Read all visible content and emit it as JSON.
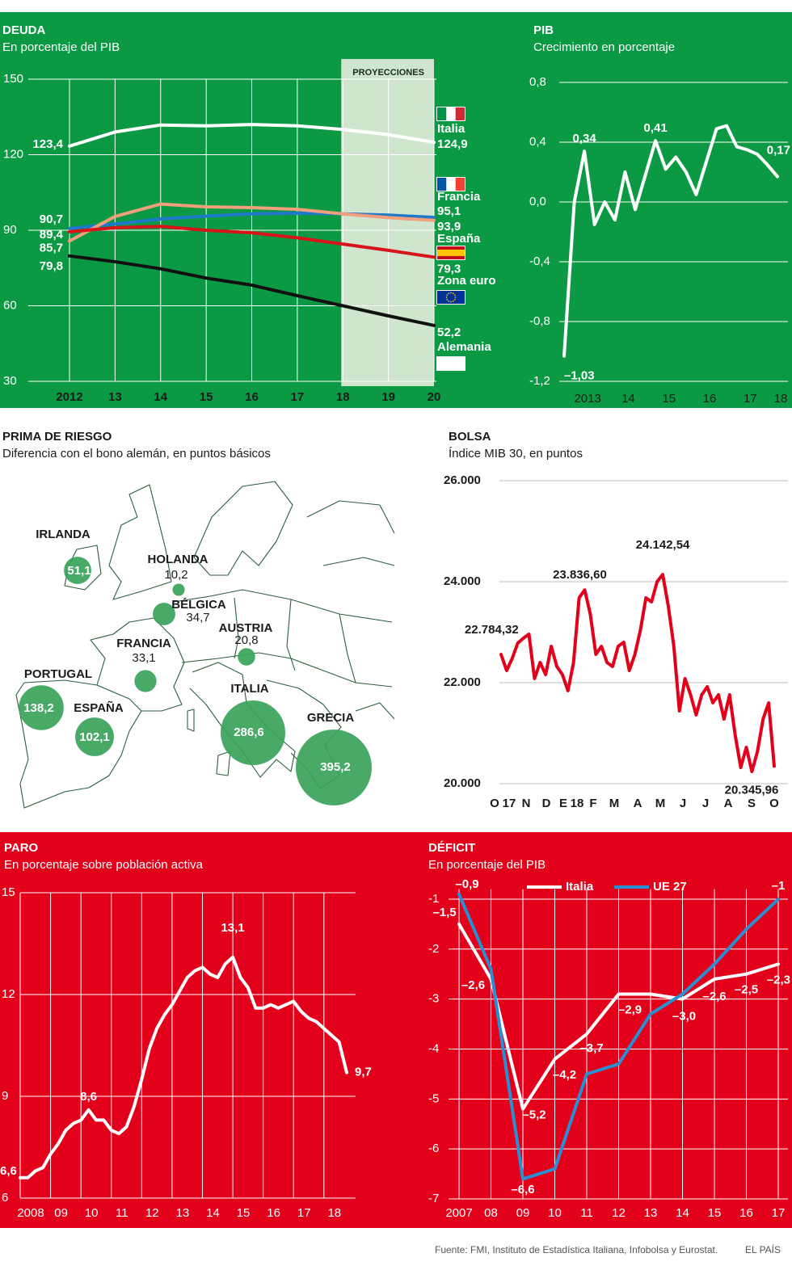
{
  "chart_data": [
    {
      "type": "line",
      "title": "DEUDA",
      "subtitle": "En porcentaje del PIB",
      "categories": [
        "2012",
        "13",
        "14",
        "15",
        "16",
        "17",
        "18",
        "19",
        "20"
      ],
      "ylim": [
        30,
        150
      ],
      "yticks": [
        30,
        60,
        90,
        120,
        150
      ],
      "grid": true,
      "projection": {
        "label": "PROYECCIONES",
        "from": "18",
        "to": "20"
      },
      "series": [
        {
          "name": "Italia",
          "color": "#ffffff",
          "values": [
            123.4,
            129,
            131.8,
            131.5,
            132,
            131.5,
            130,
            128,
            124.9
          ],
          "value_labels": [
            "123,4",
            null,
            null,
            null,
            null,
            null,
            null,
            null,
            "124,9"
          ]
        },
        {
          "name": "Francia",
          "color": "#1f78c8",
          "values": [
            90.7,
            92.5,
            94.5,
            95.6,
            96.5,
            96.8,
            96.5,
            96,
            95.1
          ],
          "value_labels": [
            "90,7",
            null,
            null,
            null,
            null,
            null,
            null,
            null,
            "95,1"
          ]
        },
        {
          "name": "España",
          "color": "#f0a07a",
          "values": [
            85.7,
            95.5,
            100.4,
            99.3,
            99,
            98.3,
            96.5,
            95,
            93.9
          ],
          "value_labels": [
            "85,7",
            null,
            null,
            null,
            null,
            null,
            null,
            null,
            "93,9"
          ]
        },
        {
          "name": "Zona euro",
          "color": "#d7141a",
          "values": [
            89.4,
            91,
            91.5,
            90,
            89,
            87,
            84.5,
            82,
            79.3
          ],
          "value_labels": [
            "89,4",
            null,
            null,
            null,
            null,
            null,
            null,
            null,
            "79,3"
          ]
        },
        {
          "name": "Alemania",
          "color": "#111111",
          "values": [
            79.8,
            77.5,
            74.7,
            71,
            68.2,
            64,
            60,
            56,
            52.2
          ],
          "value_labels": [
            "79,8",
            null,
            null,
            null,
            null,
            null,
            null,
            null,
            "52,2"
          ]
        }
      ]
    },
    {
      "type": "line",
      "title": "PIB",
      "subtitle": "Crecimiento en porcentaje",
      "categories": [
        null,
        null,
        "2013",
        null,
        null,
        null,
        "14",
        null,
        null,
        null,
        "15",
        null,
        null,
        null,
        "16",
        null,
        null,
        null,
        "17",
        null,
        null,
        "18"
      ],
      "ylim": [
        -1.2,
        0.8
      ],
      "yticks": [
        {
          "value": -1.2,
          "label": "-1,2"
        },
        {
          "value": -0.8,
          "label": "-0,8"
        },
        {
          "value": -0.4,
          "label": "-0,4"
        },
        {
          "value": 0,
          "label": "0,0"
        },
        {
          "value": 0.4,
          "label": "0,4"
        },
        {
          "value": 0.8,
          "label": "0,8"
        }
      ],
      "grid": true,
      "color": "#ffffff",
      "values": [
        -1.03,
        0.0,
        0.34,
        -0.15,
        0.0,
        -0.12,
        0.2,
        -0.05,
        0.18,
        0.41,
        0.22,
        0.3,
        0.2,
        0.05,
        0.27,
        0.49,
        0.51,
        0.37,
        0.35,
        0.32,
        0.25,
        0.17
      ],
      "value_labels": [
        "–1,03",
        null,
        "0,34",
        null,
        null,
        null,
        null,
        null,
        null,
        "0,41",
        null,
        null,
        null,
        null,
        null,
        null,
        null,
        null,
        null,
        null,
        null,
        "0,17"
      ]
    },
    {
      "type": "bubble_map",
      "title": "PRIMA DE RIESGO",
      "subtitle": "Diferencia con el bono alemán, en puntos básicos",
      "categories": [
        "IRLANDA",
        "HOLANDA",
        "BÉLGICA",
        "AUSTRIA",
        "FRANCIA",
        "PORTUGAL",
        "ESPAÑA",
        "ITALIA",
        "GRECIA"
      ],
      "values": [
        51.1,
        10.2,
        34.7,
        20.8,
        33.1,
        138.2,
        102.1,
        286.6,
        395.2
      ],
      "value_labels": [
        "51,1",
        "10,2",
        "34,7",
        "20,8",
        "33,1",
        "138,2",
        "102,1",
        "286,6",
        "395,2"
      ],
      "color": "#3aa35a"
    },
    {
      "type": "line",
      "title": "BOLSA",
      "subtitle": "Índice MIB 30, en puntos",
      "xtick_labels": [
        "O",
        "17",
        "N",
        "D",
        "E",
        "18",
        "F",
        "M",
        "A",
        "M",
        "J",
        "J",
        "A",
        "S",
        "O"
      ],
      "ylim": [
        20000,
        26000
      ],
      "yticks": [
        {
          "value": 20000,
          "label": "20.000"
        },
        {
          "value": 22000,
          "label": "22.000"
        },
        {
          "value": 24000,
          "label": "24.000"
        },
        {
          "value": 26000,
          "label": "26.000"
        }
      ],
      "grid": true,
      "color": "#e3001b",
      "values": [
        22560,
        22240,
        22480,
        22784.32,
        22880,
        22960,
        22080,
        22400,
        22160,
        22720,
        22320,
        22160,
        21840,
        22400,
        23680,
        23836.6,
        23360,
        22560,
        22720,
        22400,
        22320,
        22720,
        22800,
        22240,
        22560,
        23040,
        23680,
        23600,
        24000,
        24142.54,
        23520,
        22720,
        21440,
        22080,
        21760,
        21360,
        21760,
        21920,
        21600,
        21760,
        21280,
        21760,
        20960,
        20320,
        20720,
        20240,
        20640,
        21280,
        21600,
        20345.96
      ],
      "value_labels": [
        null,
        null,
        null,
        "22.784,32",
        null,
        null,
        null,
        null,
        null,
        null,
        null,
        null,
        null,
        null,
        null,
        "23.836,60",
        null,
        null,
        null,
        null,
        null,
        null,
        null,
        null,
        null,
        null,
        null,
        null,
        null,
        "24.142,54",
        null,
        null,
        null,
        null,
        null,
        null,
        null,
        null,
        null,
        null,
        null,
        null,
        null,
        null,
        null,
        null,
        null,
        null,
        null,
        "20.345,96"
      ]
    },
    {
      "type": "line",
      "title": "PARO",
      "subtitle": "En porcentaje sobre población activa",
      "categories": [
        "2008",
        null,
        null,
        null,
        "09",
        null,
        null,
        null,
        "10",
        null,
        null,
        null,
        "11",
        null,
        null,
        null,
        "12",
        null,
        null,
        null,
        "13",
        null,
        null,
        null,
        "14",
        null,
        null,
        null,
        "15",
        null,
        null,
        null,
        "16",
        null,
        null,
        null,
        "17",
        null,
        null,
        null,
        "18",
        null,
        null,
        null
      ],
      "ylim": [
        6,
        15
      ],
      "yticks": [
        6,
        9,
        12,
        15
      ],
      "grid": true,
      "color": "#ffffff",
      "values": [
        6.6,
        6.6,
        6.8,
        6.9,
        7.3,
        7.6,
        8.0,
        8.2,
        8.3,
        8.6,
        8.3,
        8.3,
        8.0,
        7.9,
        8.1,
        8.7,
        9.5,
        10.4,
        11.0,
        11.4,
        11.7,
        12.1,
        12.5,
        12.7,
        12.8,
        12.6,
        12.5,
        12.9,
        13.1,
        12.5,
        12.2,
        11.6,
        11.6,
        11.7,
        11.6,
        11.7,
        11.8,
        11.5,
        11.3,
        11.2,
        11.0,
        10.8,
        10.6,
        9.7
      ],
      "value_labels": [
        "6,6",
        null,
        null,
        null,
        null,
        null,
        null,
        null,
        null,
        "8,6",
        null,
        null,
        null,
        null,
        null,
        null,
        null,
        null,
        null,
        null,
        null,
        null,
        null,
        null,
        null,
        null,
        null,
        null,
        "13,1",
        null,
        null,
        null,
        null,
        null,
        null,
        null,
        null,
        null,
        null,
        null,
        null,
        null,
        null,
        "9,7"
      ]
    },
    {
      "type": "line",
      "title": "DÉFICIT",
      "subtitle": "En porcentaje del PIB",
      "categories": [
        "2007",
        "08",
        "09",
        "10",
        "11",
        "12",
        "13",
        "14",
        "15",
        "16",
        "17"
      ],
      "ylim": [
        -7,
        -0.8
      ],
      "yticks": [
        -7,
        -6,
        -5,
        -4,
        -3,
        -2,
        -1
      ],
      "grid": true,
      "series": [
        {
          "name": "Italia",
          "color": "#ffffff",
          "values": [
            -1.5,
            -2.6,
            -5.2,
            -4.2,
            -3.7,
            -2.9,
            -2.9,
            -3.0,
            -2.6,
            -2.5,
            -2.3
          ],
          "value_labels": [
            "–1,5",
            "–2,6",
            "–5,2",
            "–4,2",
            "–3,7",
            "–2,9",
            null,
            "–3,0",
            "–2,6",
            "–2,5",
            "–2,3"
          ]
        },
        {
          "name": "UE 27",
          "color": "#2a8fd0",
          "values": [
            -0.9,
            -2.4,
            -6.6,
            -6.4,
            -4.5,
            -4.3,
            -3.3,
            -2.9,
            -2.3,
            -1.6,
            -1.0
          ],
          "value_labels": [
            "–0,9",
            null,
            "–6,6",
            null,
            null,
            null,
            null,
            null,
            null,
            null,
            "–1"
          ]
        }
      ]
    }
  ],
  "source": "Fuente: FMI, Instituto de Estadística Italiana, Infobolsa y Eurostat.",
  "credit": "EL PAÍS"
}
